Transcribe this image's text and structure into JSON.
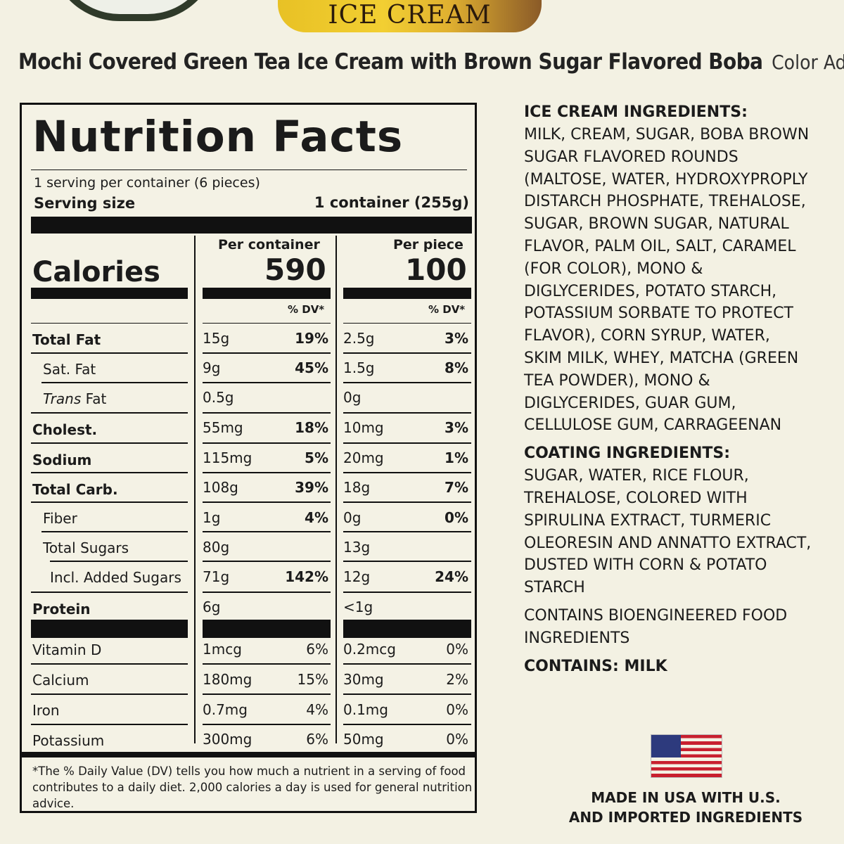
{
  "banner": "ICE CREAM",
  "product": {
    "name": "Mochi Covered Green Tea Ice Cream with Brown Sugar Flavored Boba",
    "color_note": "Color Added"
  },
  "nutrition": {
    "title": "Nutrition Facts",
    "servings": "1 serving per container (6 pieces)",
    "serving_size_label": "Serving size",
    "serving_size_value": "1 container (255g)",
    "calories_label": "Calories",
    "col1_header": "Per container",
    "col2_header": "Per piece",
    "calories_container": "590",
    "calories_piece": "100",
    "dv_header": "% DV*",
    "rows": [
      {
        "label": "Total Fat",
        "c_amt": "15g",
        "c_dv": "19%",
        "p_amt": "2.5g",
        "p_dv": "3%"
      },
      {
        "label": "Sat. Fat",
        "c_amt": "9g",
        "c_dv": "45%",
        "p_amt": "1.5g",
        "p_dv": "8%"
      },
      {
        "label_italic": "Trans",
        "label_rest": " Fat",
        "c_amt": "0.5g",
        "c_dv": "",
        "p_amt": "0g",
        "p_dv": ""
      },
      {
        "label": "Cholest.",
        "c_amt": "55mg",
        "c_dv": "18%",
        "p_amt": "10mg",
        "p_dv": "3%"
      },
      {
        "label": "Sodium",
        "c_amt": "115mg",
        "c_dv": "5%",
        "p_amt": "20mg",
        "p_dv": "1%"
      },
      {
        "label": "Total Carb.",
        "c_amt": "108g",
        "c_dv": "39%",
        "p_amt": "18g",
        "p_dv": "7%"
      },
      {
        "label": "Fiber",
        "c_amt": "1g",
        "c_dv": "4%",
        "p_amt": "0g",
        "p_dv": "0%"
      },
      {
        "label": "Total Sugars",
        "c_amt": "80g",
        "c_dv": "",
        "p_amt": "13g",
        "p_dv": ""
      },
      {
        "label": "Incl. Added Sugars",
        "c_amt": "71g",
        "c_dv": "142%",
        "p_amt": "12g",
        "p_dv": "24%"
      },
      {
        "label": "Protein",
        "c_amt": "6g",
        "c_dv": "",
        "p_amt": "<1g",
        "p_dv": ""
      }
    ],
    "vitamins": [
      {
        "label": "Vitamin D",
        "c_amt": "1mcg",
        "c_dv": "6%",
        "p_amt": "0.2mcg",
        "p_dv": "0%"
      },
      {
        "label": "Calcium",
        "c_amt": "180mg",
        "c_dv": "15%",
        "p_amt": "30mg",
        "p_dv": "2%"
      },
      {
        "label": "Iron",
        "c_amt": "0.7mg",
        "c_dv": "4%",
        "p_amt": "0.1mg",
        "p_dv": "0%"
      },
      {
        "label": "Potassium",
        "c_amt": "300mg",
        "c_dv": "6%",
        "p_amt": "50mg",
        "p_dv": "0%"
      }
    ],
    "footnote": "*The % Daily Value (DV) tells you how much a nutrient in a serving of food contributes to a daily diet. 2,000 calories a day is used for general nutrition advice."
  },
  "ingredients": {
    "ice_cream_head": "ICE CREAM INGREDIENTS:",
    "ice_cream_lines": [
      "MILK, CREAM, SUGAR, BOBA BROWN",
      "SUGAR FLAVORED ROUNDS",
      "(MALTOSE, WATER, HYDROXYPROPLY",
      "DISTARCH PHOSPHATE, TREHALOSE,",
      "SUGAR, BROWN SUGAR, NATURAL",
      "FLAVOR, PALM OIL, SALT, CARAMEL",
      "(FOR COLOR), MONO &",
      "DIGLYCERIDES, POTATO STARCH,",
      "POTASSIUM SORBATE TO PROTECT",
      "FLAVOR), CORN SYRUP, WATER,",
      "SKIM MILK, WHEY, MATCHA (GREEN",
      "TEA POWDER), MONO &",
      "DIGLYCERIDES, GUAR GUM,",
      "CELLULOSE GUM, CARRAGEENAN"
    ],
    "coating_head": "COATING INGREDIENTS:",
    "coating_lines": [
      "SUGAR, WATER, RICE FLOUR,",
      "TREHALOSE, COLORED WITH",
      "SPIRULINA EXTRACT, TURMERIC",
      "OLEORESIN AND ANNATTO EXTRACT,",
      "DUSTED WITH CORN & POTATO",
      "STARCH"
    ],
    "bioengineered_lines": [
      "CONTAINS BIOENGINEERED FOOD",
      "INGREDIENTS"
    ],
    "allergen": "CONTAINS: MILK"
  },
  "made_in": [
    "MADE IN USA WITH U.S.",
    "AND IMPORTED INGREDIENTS"
  ],
  "colors": {
    "background": "#f3f1e3",
    "banner_gold": "#f2cf32",
    "flag_red": "#c8202f",
    "flag_blue": "#2d3a7d"
  }
}
